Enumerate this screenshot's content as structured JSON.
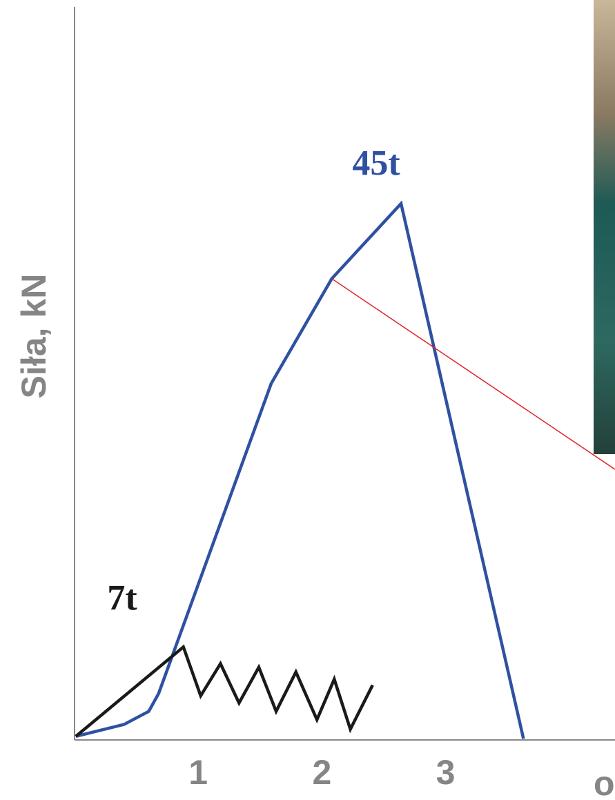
{
  "chart_data": {
    "type": "line",
    "ylabel": "Siła, kN",
    "xlabel": "o",
    "annotations": [
      "45t",
      "7t"
    ],
    "xlim": [
      0,
      4.37
    ],
    "ylim": [
      0,
      61.5
    ],
    "xticks": [
      1,
      2,
      3
    ],
    "grid": false,
    "series": [
      {
        "color": "#2f51a2",
        "x": [
          0.01,
          0.4,
          0.6,
          0.68,
          1.59,
          2.08,
          2.64,
          3.63
        ],
        "values": [
          0.3,
          1.3,
          2.4,
          3.9,
          29.9,
          38.7,
          45.0,
          0.1
        ]
      },
      {
        "color": "#1a1a1a",
        "x": [
          0.01,
          0.88,
          1.02,
          1.18,
          1.33,
          1.49,
          1.63,
          1.79,
          1.96,
          2.1,
          2.23,
          2.41
        ],
        "values": [
          0.3,
          7.8,
          3.7,
          6.4,
          3.1,
          6.1,
          2.4,
          5.7,
          1.7,
          5.1,
          0.9,
          4.6
        ]
      },
      {
        "color": "#e32222",
        "x": [
          2.08,
          4.37
        ],
        "values": [
          38.7,
          22.7
        ]
      }
    ]
  }
}
